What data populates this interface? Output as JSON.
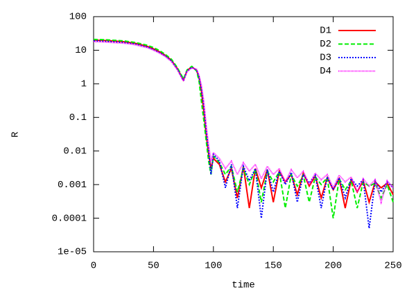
{
  "chart_data": {
    "type": "line",
    "xlabel": "time",
    "ylabel": "R",
    "yscale": "log",
    "legend": "upper right",
    "xlim": [
      0,
      250
    ],
    "xticks": [
      0,
      50,
      100,
      150,
      200,
      250
    ],
    "ylim": [
      1e-05,
      100
    ],
    "yticks": [
      100,
      10,
      1,
      0.1,
      0.01,
      0.001,
      0.0001,
      {
        "value": 1e-05,
        "label": "1e-05"
      }
    ],
    "x": [
      0,
      5,
      10,
      15,
      20,
      25,
      30,
      35,
      40,
      45,
      50,
      55,
      60,
      65,
      70,
      75,
      78,
      82,
      86,
      88,
      90,
      92,
      94,
      96,
      98,
      100,
      105,
      110,
      115,
      120,
      125,
      130,
      135,
      140,
      145,
      150,
      155,
      160,
      165,
      170,
      175,
      180,
      185,
      190,
      195,
      200,
      205,
      210,
      215,
      220,
      225,
      230,
      235,
      240,
      245,
      250
    ],
    "series": [
      {
        "name": "D1",
        "color": "#ff0000",
        "values": [
          20,
          19.8,
          19.5,
          19,
          18.5,
          18,
          17,
          16,
          14.5,
          13,
          11,
          9,
          7,
          5,
          2.8,
          1.3,
          2.5,
          3.2,
          2.5,
          1.5,
          0.6,
          0.15,
          0.03,
          0.008,
          0.003,
          0.006,
          0.004,
          0.0012,
          0.003,
          0.0004,
          0.0035,
          0.0002,
          0.003,
          0.0008,
          0.0028,
          0.0003,
          0.0025,
          0.0012,
          0.002,
          0.0005,
          0.0022,
          0.0009,
          0.0018,
          0.0004,
          0.0016,
          0.0007,
          0.0015,
          0.0002,
          0.0014,
          0.0006,
          0.0013,
          0.0003,
          0.0012,
          0.0008,
          0.0011,
          0.0005
        ]
      },
      {
        "name": "D2",
        "color": "#00ee00",
        "values": [
          21,
          20.8,
          20.5,
          20,
          19.5,
          19,
          18,
          17,
          15.5,
          14,
          12,
          9.8,
          7.5,
          5.4,
          3,
          1.4,
          2.6,
          3.3,
          2.4,
          1.2,
          0.3,
          0.08,
          0.02,
          0.005,
          0.002,
          0.007,
          0.0045,
          0.002,
          0.0035,
          0.0006,
          0.003,
          0.001,
          0.0028,
          0.0003,
          0.0025,
          0.0012,
          0.0024,
          0.0002,
          0.002,
          0.0009,
          0.0019,
          0.0003,
          0.0017,
          0.001,
          0.0016,
          0.0001,
          0.0015,
          0.0007,
          0.0013,
          0.0002,
          0.0012,
          0.0009,
          0.0011,
          0.0004,
          0.001,
          0.0003
        ]
      },
      {
        "name": "D3",
        "color": "#0000ff",
        "values": [
          19,
          18.8,
          18.5,
          18,
          17.5,
          17,
          16.2,
          15.2,
          13.8,
          12.4,
          10.5,
          8.6,
          6.7,
          4.8,
          2.7,
          1.25,
          2.4,
          3.1,
          2.6,
          1.6,
          0.7,
          0.2,
          0.04,
          0.01,
          0.002,
          0.008,
          0.005,
          0.0008,
          0.004,
          0.0002,
          0.0035,
          0.0013,
          0.003,
          0.0001,
          0.0028,
          0.0006,
          0.0025,
          0.001,
          0.0023,
          0.0003,
          0.002,
          0.0011,
          0.0019,
          0.0002,
          0.0017,
          0.0007,
          0.0016,
          0.0004,
          0.0015,
          0.0009,
          0.0014,
          5e-05,
          0.0013,
          0.0006,
          0.0012,
          0.0008
        ]
      },
      {
        "name": "D4",
        "color": "#ff00ff",
        "values": [
          18,
          17.8,
          17.5,
          17,
          16.6,
          16.2,
          15.4,
          14.4,
          13,
          11.8,
          10,
          8.2,
          6.4,
          4.6,
          2.6,
          1.2,
          2.3,
          3.0,
          2.7,
          1.8,
          0.9,
          0.3,
          0.06,
          0.015,
          0.005,
          0.009,
          0.006,
          0.003,
          0.005,
          0.002,
          0.0045,
          0.0025,
          0.004,
          0.0015,
          0.0035,
          0.002,
          0.003,
          0.0012,
          0.0028,
          0.0016,
          0.0025,
          0.001,
          0.0022,
          0.0014,
          0.002,
          0.0008,
          0.0019,
          0.0012,
          0.0017,
          0.0006,
          0.0015,
          0.0009,
          0.0014,
          0.0003,
          0.0013,
          0.0008
        ]
      }
    ]
  }
}
